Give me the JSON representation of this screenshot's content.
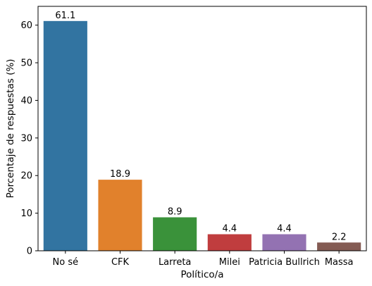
{
  "chart_data": {
    "type": "bar",
    "categories": [
      "No sé",
      "CFK",
      "Larreta",
      "Milei",
      "Patricia Bullrich",
      "Massa"
    ],
    "values": [
      61.1,
      18.9,
      8.9,
      4.4,
      4.4,
      2.2
    ],
    "data_labels": [
      "61.1",
      "18.9",
      "8.9",
      "4.4",
      "4.4",
      "2.2"
    ],
    "colors": [
      "#3274a1",
      "#e1812c",
      "#3a923a",
      "#c03d3e",
      "#9372b2",
      "#845b53"
    ],
    "title": "",
    "xlabel": "Político/a",
    "ylabel": "Porcentaje de respuestas (%)",
    "ylim": [
      0,
      65
    ],
    "yticks": [
      0,
      10,
      20,
      30,
      40,
      50,
      60
    ],
    "grid": false,
    "legend": "none"
  }
}
